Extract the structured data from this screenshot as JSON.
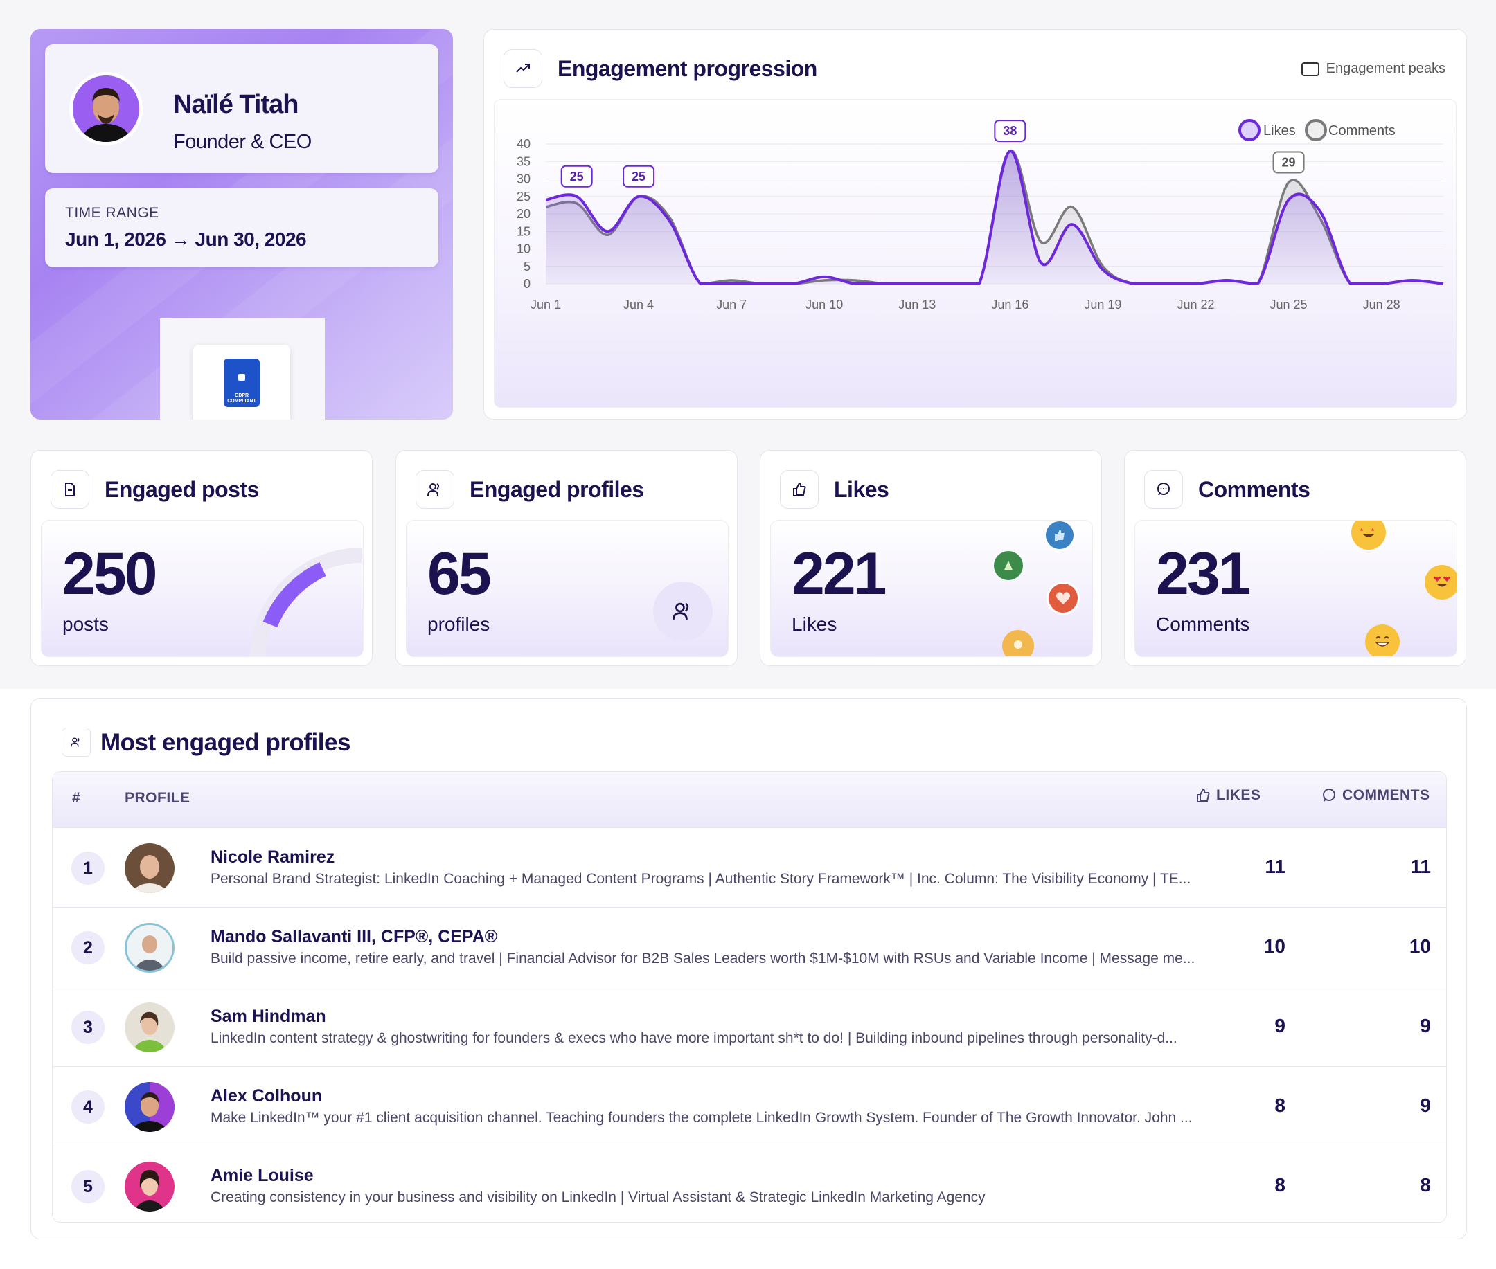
{
  "profile": {
    "name": "Naïlé Titah",
    "role": "Founder & CEO",
    "time_range_label": "TIME RANGE",
    "time_range_value": "Jun 1, 2026 → Jun 30, 2026",
    "gdpr_badge_text": "GDPR COMPLIANT"
  },
  "chart_card": {
    "title": "Engagement progression",
    "peaks_toggle_label": "Engagement peaks",
    "legend_likes": "Likes",
    "legend_comments": "Comments"
  },
  "chart_data": {
    "type": "area",
    "x": [
      "Jun 1",
      "Jun 2",
      "Jun 3",
      "Jun 4",
      "Jun 5",
      "Jun 6",
      "Jun 7",
      "Jun 8",
      "Jun 9",
      "Jun 10",
      "Jun 11",
      "Jun 12",
      "Jun 13",
      "Jun 14",
      "Jun 15",
      "Jun 16",
      "Jun 17",
      "Jun 18",
      "Jun 19",
      "Jun 20",
      "Jun 21",
      "Jun 22",
      "Jun 23",
      "Jun 24",
      "Jun 25",
      "Jun 26",
      "Jun 27",
      "Jun 28",
      "Jun 29",
      "Jun 30"
    ],
    "x_tick_labels": [
      "Jun 1",
      "Jun 4",
      "Jun 7",
      "Jun 10",
      "Jun 13",
      "Jun 16",
      "Jun 19",
      "Jun 22",
      "Jun 25",
      "Jun 28"
    ],
    "series": [
      {
        "name": "Likes",
        "color": "#6d28d9",
        "values": [
          24,
          25,
          15,
          25,
          18,
          0,
          0,
          0,
          0,
          2,
          0,
          0,
          0,
          0,
          0,
          38,
          6,
          17,
          4,
          0,
          0,
          0,
          1,
          0,
          24,
          21,
          0,
          0,
          1,
          0
        ]
      },
      {
        "name": "Comments",
        "color": "#7a7a7a",
        "values": [
          22,
          23,
          14,
          25,
          19,
          0,
          1,
          0,
          0,
          1,
          1,
          0,
          0,
          0,
          0,
          38,
          12,
          22,
          5,
          0,
          0,
          0,
          1,
          0,
          29,
          19,
          0,
          0,
          1,
          0
        ]
      }
    ],
    "peak_labels": [
      {
        "x": "Jun 2",
        "value": "25"
      },
      {
        "x": "Jun 4",
        "value": "25"
      },
      {
        "x": "Jun 16",
        "value": "38"
      },
      {
        "x": "Jun 25",
        "value": "29"
      }
    ],
    "y_ticks": [
      "0",
      "5",
      "10",
      "15",
      "20",
      "25",
      "30",
      "35",
      "40"
    ],
    "ylim": [
      0,
      40
    ],
    "grid": true,
    "legend_position": "top-right"
  },
  "stats": [
    {
      "title": "Engaged posts",
      "value": "250",
      "unit": "posts",
      "icon": "document-icon"
    },
    {
      "title": "Engaged profiles",
      "value": "65",
      "unit": "profiles",
      "icon": "users-icon"
    },
    {
      "title": "Likes",
      "value": "221",
      "unit": "Likes",
      "icon": "thumbs-up-icon"
    },
    {
      "title": "Comments",
      "value": "231",
      "unit": "Comments",
      "icon": "comment-icon"
    }
  ],
  "table": {
    "title": "Most engaged profiles",
    "headers": {
      "rank": "#",
      "profile": "PROFILE",
      "likes": "LIKES",
      "comments": "COMMENTS"
    },
    "rows": [
      {
        "rank": "1",
        "name": "Nicole Ramirez",
        "desc": "Personal Brand Strategist: LinkedIn Coaching + Managed Content Programs | Authentic Story Framework™ | Inc. Column: The Visibility Economy | TE...",
        "likes": "11",
        "comments": "11",
        "avatar_color": "#6b4f3a"
      },
      {
        "rank": "2",
        "name": "Mando Sallavanti III, CFP®, CEPA®",
        "desc": "Build passive income, retire early, and travel | Financial Advisor for B2B Sales Leaders worth $1M-$10M with RSUs and Variable Income | Message me...",
        "likes": "10",
        "comments": "10",
        "avatar_color": "#8bc3d8"
      },
      {
        "rank": "3",
        "name": "Sam Hindman",
        "desc": "LinkedIn content strategy & ghostwriting for founders & execs who have more important sh*t to do! | Building inbound pipelines through personality-d...",
        "likes": "9",
        "comments": "9",
        "avatar_color": "#d6d0c4"
      },
      {
        "rank": "4",
        "name": "Alex Colhoun",
        "desc": "Make LinkedIn™ your #1 client acquisition channel. Teaching founders the complete LinkedIn Growth System. Founder of The Growth Innovator. John ...",
        "likes": "8",
        "comments": "9",
        "avatar_color": "#3b48c9"
      },
      {
        "rank": "5",
        "name": "Amie Louise",
        "desc": "Creating consistency in your business and visibility on LinkedIn | Virtual Assistant & Strategic LinkedIn Marketing Agency",
        "likes": "8",
        "comments": "8",
        "avatar_color": "#e0348a"
      }
    ]
  },
  "colors": {
    "accent": "#6d28d9",
    "brand_purple": "#a783f2",
    "text_dark": "#1d1250"
  }
}
